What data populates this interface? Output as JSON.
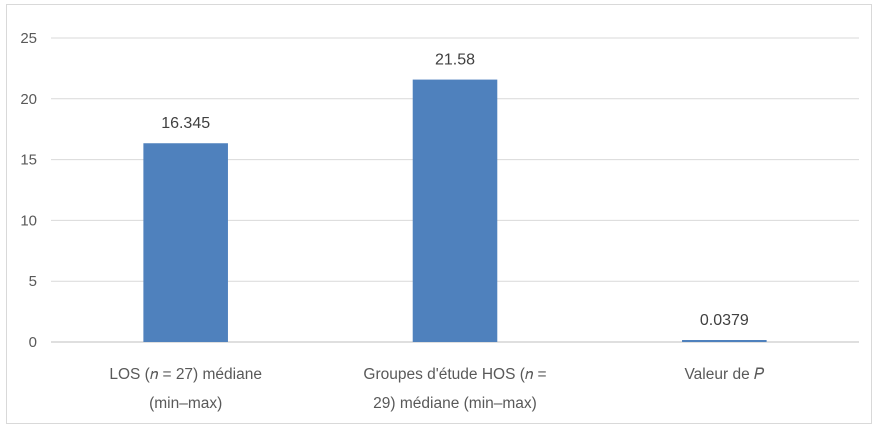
{
  "chart_data": {
    "type": "bar",
    "categories": [
      [
        "LOS (𝑛 = 27) médiane",
        "(min–max)"
      ],
      [
        "Groupes d'étude HOS (𝑛 =",
        "29) médiane (min–max)"
      ],
      [
        "Valeur de 𝑃"
      ]
    ],
    "values": [
      16.345,
      21.58,
      0.0379
    ],
    "data_labels": [
      "16.345",
      "21.58",
      "0.0379"
    ],
    "ylim": [
      0,
      25
    ],
    "yticks": [
      0,
      5,
      10,
      15,
      20,
      25
    ],
    "grid": true,
    "legend": "none",
    "colors": {
      "bar": "#4f81bd",
      "grid": "#d9d9d9",
      "text": "#595959"
    }
  }
}
